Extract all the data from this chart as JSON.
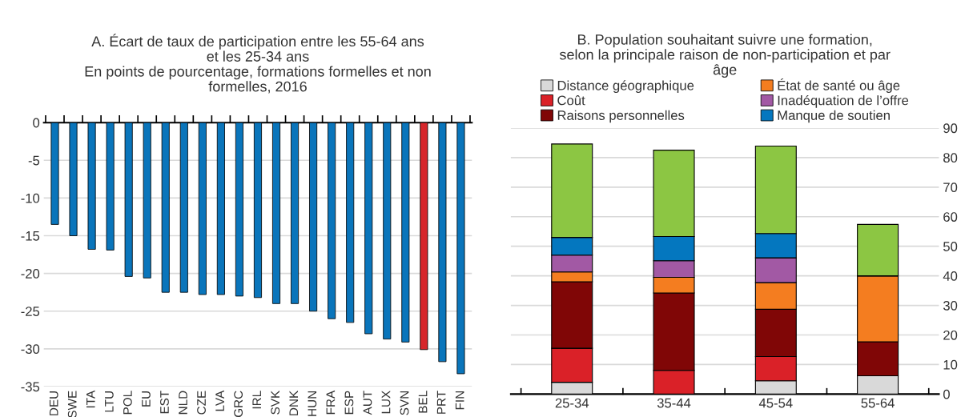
{
  "chart_data": [
    {
      "type": "bar",
      "title": "A. Écart de taux de participation entre les 55-64 ans\net les 25-34 ans",
      "subtitle": "En points de pourcentage, formations formelles et non\nformelles, 2016",
      "categories": [
        "DEU",
        "SWE",
        "ITA",
        "LTU",
        "POL",
        "EU",
        "EST",
        "NLD",
        "CZE",
        "LVA",
        "GRC",
        "IRL",
        "SVK",
        "DNK",
        "HUN",
        "FRA",
        "ESP",
        "AUT",
        "LUX",
        "SVN",
        "BEL",
        "PRT",
        "FIN"
      ],
      "values": [
        -13.5,
        -15,
        -16.8,
        -16.9,
        -20.4,
        -20.6,
        -22.5,
        -22.5,
        -22.8,
        -22.8,
        -23,
        -23.2,
        -24,
        -24,
        -25,
        -26,
        -26.5,
        -28,
        -28.7,
        -29.1,
        -30.1,
        -31.7,
        -33.3
      ],
      "colors": [
        "#0a75bb",
        "#0a75bb",
        "#0a75bb",
        "#0a75bb",
        "#0a75bb",
        "#0a75bb",
        "#0a75bb",
        "#0a75bb",
        "#0a75bb",
        "#0a75bb",
        "#0a75bb",
        "#0a75bb",
        "#0a75bb",
        "#0a75bb",
        "#0a75bb",
        "#0a75bb",
        "#0a75bb",
        "#0a75bb",
        "#0a75bb",
        "#0a75bb",
        "#d7262b",
        "#0a75bb",
        "#0a75bb"
      ],
      "ylim": [
        -35,
        0
      ],
      "yticks": [
        0,
        -5,
        -10,
        -15,
        -20,
        -25,
        -30,
        -35
      ],
      "grid": "y",
      "legend": false
    },
    {
      "type": "bar",
      "title": "B. Population souhaitant suivre une formation,\nselon la principale raison de non-participation et par\nâge",
      "stacked": true,
      "categories": [
        "25-34",
        "35-44",
        "45-54",
        "55-64"
      ],
      "series": [
        {
          "name": "Distance géographique",
          "color": "#d9d9d9",
          "values": [
            4,
            0,
            4.5,
            6.2
          ]
        },
        {
          "name": "Coût",
          "color": "#da2128",
          "values": [
            11.5,
            8,
            8.2,
            0
          ]
        },
        {
          "name": "Raisons personnelles",
          "color": "#800606",
          "values": [
            22.5,
            26.2,
            16,
            11.5
          ]
        },
        {
          "name": "État de santé ou âge",
          "color": "#f47d20",
          "values": [
            3.3,
            5.3,
            9,
            22.3
          ]
        },
        {
          "name": "Inadéquation de l’offre",
          "color": "#a259a4",
          "values": [
            5.7,
            5.6,
            8.4,
            0
          ]
        },
        {
          "name": "Manque de soutien",
          "color": "#0477bf",
          "values": [
            6,
            8.2,
            8.2,
            0
          ]
        },
        {
          "color": "#8cc643",
          "values": [
            31.6,
            29.2,
            29.6,
            17.4
          ]
        }
      ],
      "ylim": [
        0,
        90
      ],
      "yticks": [
        0,
        10,
        20,
        30,
        40,
        50,
        60,
        70,
        80,
        90
      ],
      "grid": "y",
      "legend": "top"
    }
  ]
}
